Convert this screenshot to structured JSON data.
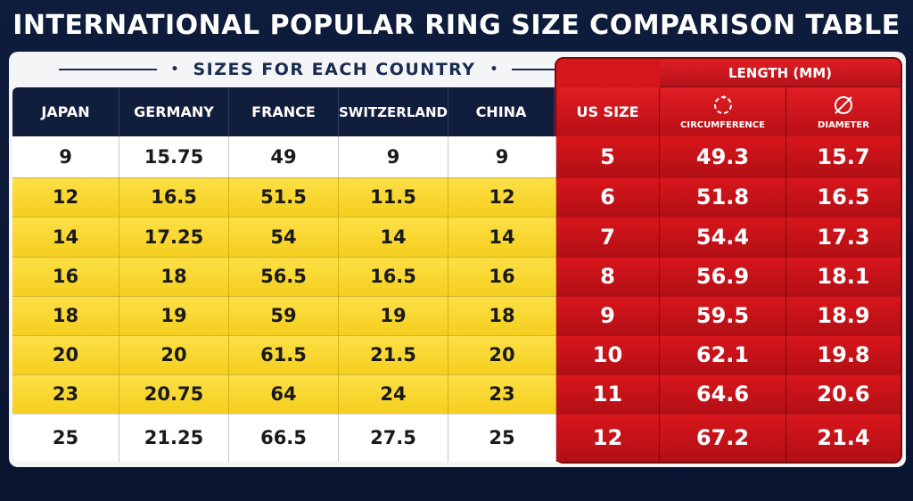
{
  "title": "INTERNATIONAL POPULAR RING SIZE COMPARISON TABLE",
  "subtitle": "SIZES FOR EACH COUNTRY",
  "length_header": "LENGTH (MM)",
  "columns": {
    "japan": "JAPAN",
    "germany": "GERMANY",
    "france": "FRANCE",
    "switzerland": "SWITZERLAND",
    "china": "CHINA",
    "us_size": "US SIZE",
    "circumference": "CIRCUMFERENCE",
    "diameter": "DIAMETER"
  },
  "icons": {
    "circumference": "circular-arrow-icon",
    "diameter": "diameter-symbol-icon"
  },
  "colors": {
    "navy": "#101d3d",
    "yellow": "#fde047",
    "red": "#d9161c",
    "white": "#ffffff"
  },
  "chart_data": {
    "type": "table",
    "title": "INTERNATIONAL POPULAR RING SIZE COMPARISON TABLE",
    "subtitle": "SIZES FOR EACH COUNTRY",
    "headers": [
      "JAPAN",
      "GERMANY",
      "FRANCE",
      "SWITZERLAND",
      "CHINA",
      "US SIZE",
      "CIRCUMFERENCE",
      "DIAMETER"
    ],
    "rows": [
      [
        "9",
        "15.75",
        "49",
        "9",
        "9",
        "5",
        "49.3",
        "15.7"
      ],
      [
        "12",
        "16.5",
        "51.5",
        "11.5",
        "12",
        "6",
        "51.8",
        "16.5"
      ],
      [
        "14",
        "17.25",
        "54",
        "14",
        "14",
        "7",
        "54.4",
        "17.3"
      ],
      [
        "16",
        "18",
        "56.5",
        "16.5",
        "16",
        "8",
        "56.9",
        "18.1"
      ],
      [
        "18",
        "19",
        "59",
        "19",
        "18",
        "9",
        "59.5",
        "18.9"
      ],
      [
        "20",
        "20",
        "61.5",
        "21.5",
        "20",
        "10",
        "62.1",
        "19.8"
      ],
      [
        "23",
        "20.75",
        "64",
        "24",
        "23",
        "11",
        "64.6",
        "20.6"
      ],
      [
        "25",
        "21.25",
        "66.5",
        "27.5",
        "25",
        "12",
        "67.2",
        "21.4"
      ]
    ]
  }
}
